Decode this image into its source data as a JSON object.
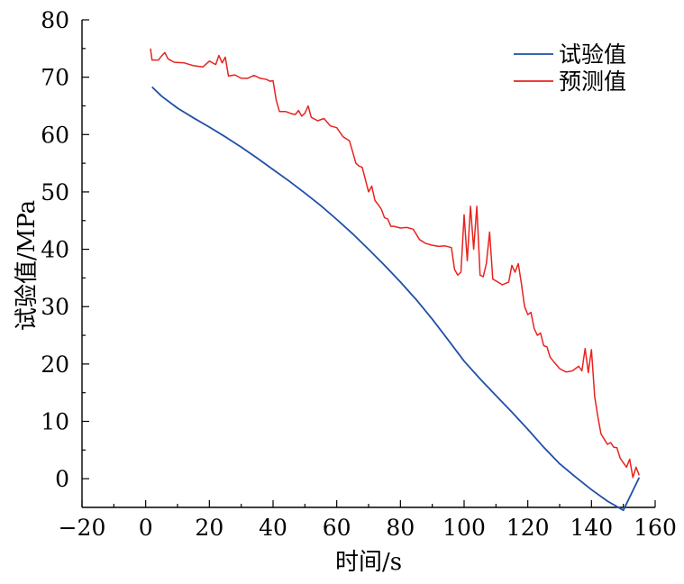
{
  "chart_data": {
    "type": "line",
    "title": "",
    "xlabel": "时间/s",
    "ylabel": "试验值/MPa",
    "xlim": [
      -20,
      160
    ],
    "ylim": [
      -5,
      80
    ],
    "x_ticks": [
      -20,
      0,
      20,
      40,
      60,
      80,
      100,
      120,
      140,
      160
    ],
    "x_tick_labels": [
      "−20",
      "0",
      "20",
      "40",
      "60",
      "80",
      "100",
      "120",
      "140",
      "160"
    ],
    "y_ticks": [
      0,
      10,
      20,
      30,
      40,
      50,
      60,
      70,
      80
    ],
    "y_tick_labels": [
      "0",
      "10",
      "20",
      "30",
      "40",
      "50",
      "60",
      "70",
      "80"
    ],
    "grid": false,
    "legend_position": "top-right",
    "series": [
      {
        "name": "试验值",
        "color": "#1f4fa8",
        "points": [
          [
            2,
            68.3
          ],
          [
            5,
            66.7
          ],
          [
            10,
            64.6
          ],
          [
            15,
            62.9
          ],
          [
            20,
            61.3
          ],
          [
            25,
            59.6
          ],
          [
            30,
            57.8
          ],
          [
            35,
            55.9
          ],
          [
            40,
            53.9
          ],
          [
            45,
            51.9
          ],
          [
            50,
            49.8
          ],
          [
            55,
            47.6
          ],
          [
            60,
            45.2
          ],
          [
            65,
            42.7
          ],
          [
            70,
            40.0
          ],
          [
            75,
            37.2
          ],
          [
            80,
            34.3
          ],
          [
            85,
            31.2
          ],
          [
            90,
            27.8
          ],
          [
            95,
            24.2
          ],
          [
            100,
            20.5
          ],
          [
            105,
            17.4
          ],
          [
            110,
            14.5
          ],
          [
            115,
            11.6
          ],
          [
            120,
            8.6
          ],
          [
            125,
            5.5
          ],
          [
            130,
            2.6
          ],
          [
            135,
            0.3
          ],
          [
            140,
            -1.9
          ],
          [
            145,
            -3.9
          ],
          [
            150,
            -5.5
          ],
          [
            155,
            0.2
          ]
        ]
      },
      {
        "name": "预测值",
        "color": "#e8231f",
        "points": [
          [
            1.5,
            75.0
          ],
          [
            2,
            73.0
          ],
          [
            4,
            73.0
          ],
          [
            5,
            73.7
          ],
          [
            6,
            74.3
          ],
          [
            7,
            73.2
          ],
          [
            9,
            72.6
          ],
          [
            12,
            72.5
          ],
          [
            15,
            72.0
          ],
          [
            18,
            71.8
          ],
          [
            20,
            72.8
          ],
          [
            22,
            72.2
          ],
          [
            23,
            73.8
          ],
          [
            24,
            72.5
          ],
          [
            25,
            73.5
          ],
          [
            26,
            70.2
          ],
          [
            28,
            70.4
          ],
          [
            30,
            69.8
          ],
          [
            32,
            69.8
          ],
          [
            34,
            70.3
          ],
          [
            36,
            69.8
          ],
          [
            38,
            69.6
          ],
          [
            39,
            69.3
          ],
          [
            40,
            69.4
          ],
          [
            41,
            66.0
          ],
          [
            42,
            64.0
          ],
          [
            44,
            64.0
          ],
          [
            46,
            63.6
          ],
          [
            47,
            63.5
          ],
          [
            48,
            64.2
          ],
          [
            49,
            63.2
          ],
          [
            50,
            63.7
          ],
          [
            51,
            65.0
          ],
          [
            52,
            63.0
          ],
          [
            54,
            62.4
          ],
          [
            56,
            62.8
          ],
          [
            58,
            61.5
          ],
          [
            60,
            61.2
          ],
          [
            62,
            59.6
          ],
          [
            64,
            58.9
          ],
          [
            65,
            57.0
          ],
          [
            66,
            55.0
          ],
          [
            67,
            54.5
          ],
          [
            68,
            54.3
          ],
          [
            70,
            50.0
          ],
          [
            71,
            51.0
          ],
          [
            72,
            48.5
          ],
          [
            73,
            47.8
          ],
          [
            74,
            47.0
          ],
          [
            75,
            45.5
          ],
          [
            76,
            45.3
          ],
          [
            77,
            44.0
          ],
          [
            78,
            44.0
          ],
          [
            80,
            43.7
          ],
          [
            82,
            43.8
          ],
          [
            84,
            43.5
          ],
          [
            86,
            41.7
          ],
          [
            88,
            41.0
          ],
          [
            90,
            40.7
          ],
          [
            92,
            40.5
          ],
          [
            94,
            40.6
          ],
          [
            96,
            40.3
          ],
          [
            97,
            36.5
          ],
          [
            98,
            35.5
          ],
          [
            99,
            36.0
          ],
          [
            100,
            46.0
          ],
          [
            101,
            38.0
          ],
          [
            102,
            47.5
          ],
          [
            103,
            40.0
          ],
          [
            104,
            47.5
          ],
          [
            105,
            35.5
          ],
          [
            106,
            35.2
          ],
          [
            107,
            37.5
          ],
          [
            108,
            43.0
          ],
          [
            109,
            34.8
          ],
          [
            110,
            34.5
          ],
          [
            112,
            33.8
          ],
          [
            114,
            34.3
          ],
          [
            115,
            37.2
          ],
          [
            116,
            36.0
          ],
          [
            117,
            37.5
          ],
          [
            118,
            34.0
          ],
          [
            119,
            30.0
          ],
          [
            120,
            28.6
          ],
          [
            121,
            29.0
          ],
          [
            122,
            26.2
          ],
          [
            123,
            25.0
          ],
          [
            124,
            25.4
          ],
          [
            125,
            23.2
          ],
          [
            126,
            23.0
          ],
          [
            127,
            21.2
          ],
          [
            128,
            20.5
          ],
          [
            130,
            19.2
          ],
          [
            132,
            18.6
          ],
          [
            134,
            18.8
          ],
          [
            136,
            19.6
          ],
          [
            137,
            18.8
          ],
          [
            138,
            22.7
          ],
          [
            139,
            18.5
          ],
          [
            140,
            22.5
          ],
          [
            141,
            14.3
          ],
          [
            142,
            10.8
          ],
          [
            143,
            7.8
          ],
          [
            144,
            6.9
          ],
          [
            145,
            6.0
          ],
          [
            146,
            6.3
          ],
          [
            147,
            5.5
          ],
          [
            148,
            5.4
          ],
          [
            149,
            3.6
          ],
          [
            150,
            2.8
          ],
          [
            151,
            2.0
          ],
          [
            152,
            3.4
          ],
          [
            153,
            0.2
          ],
          [
            154,
            2.0
          ],
          [
            155,
            0.6
          ]
        ]
      }
    ]
  }
}
